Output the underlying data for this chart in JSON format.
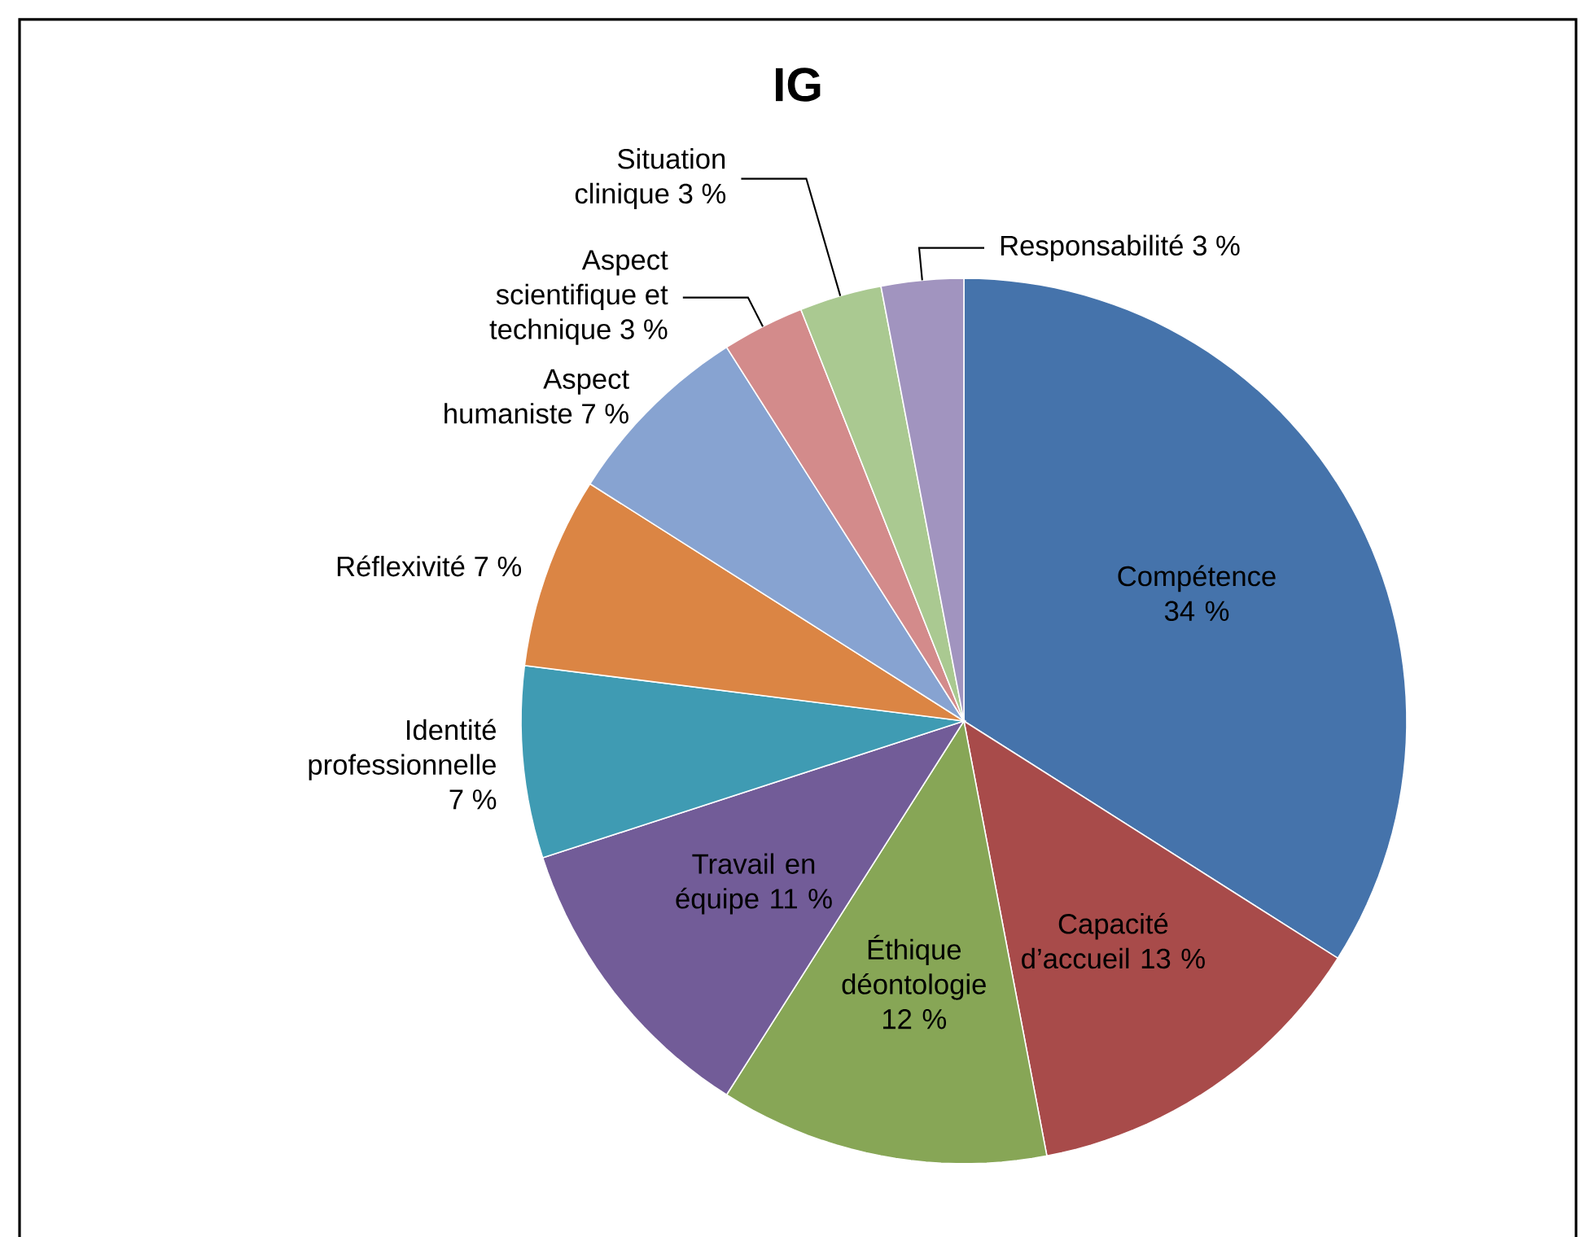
{
  "chart_data": {
    "type": "pie",
    "title": "IG",
    "categories": [
      "Compétence",
      "Capacité d’accueil",
      "Éthique déontologie",
      "Travail en équipe",
      "Identité professionnelle",
      "Réflexivité",
      "Aspect humaniste",
      "Aspect scientifique et technique",
      "Situation clinique",
      "Responsabilité"
    ],
    "values": [
      34,
      13,
      12,
      11,
      7,
      7,
      7,
      3,
      3,
      3
    ],
    "value_labels": [
      "34 %",
      "13 %",
      "12 %",
      "11 %",
      "7 %",
      "7 %",
      "7 %",
      "3 %",
      "3 %",
      "3 %"
    ],
    "colors": [
      "#4573ab",
      "#a84b4a",
      "#87a656",
      "#725c98",
      "#3f9bb3",
      "#db8544",
      "#87a3d1",
      "#d38b8b",
      "#aac991",
      "#a194bf"
    ]
  }
}
